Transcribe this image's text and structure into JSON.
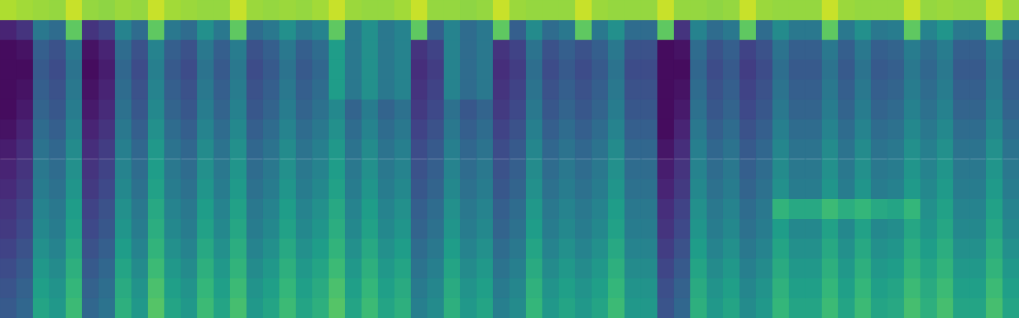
{
  "chart_data": {
    "type": "heatmap",
    "color": "viridis",
    "color_range": [
      0,
      100
    ],
    "ylim": [
      0,
      16
    ],
    "tick_labels": false,
    "cells": [
      [
        88,
        86,
        85,
        84,
        92,
        84,
        83,
        85,
        84,
        92,
        86,
        85,
        84,
        84,
        92,
        85,
        84,
        85,
        84,
        86,
        92,
        85,
        84,
        84,
        86,
        92,
        84,
        84,
        83,
        84,
        92,
        85,
        84,
        84,
        84,
        92,
        85,
        84,
        84,
        84,
        92,
        84,
        84,
        83,
        84,
        92,
        85,
        84,
        84,
        84,
        92,
        85,
        84,
        84,
        84,
        92,
        84,
        85,
        84,
        84,
        92,
        85
      ],
      [
        10,
        15,
        40,
        35,
        75,
        15,
        20,
        45,
        35,
        75,
        40,
        35,
        50,
        40,
        75,
        35,
        40,
        50,
        40,
        45,
        75,
        40,
        50,
        40,
        45,
        75,
        30,
        45,
        35,
        40,
        75,
        30,
        48,
        35,
        40,
        75,
        40,
        50,
        35,
        35,
        75,
        15,
        45,
        35,
        40,
        75,
        35,
        48,
        40,
        40,
        75,
        40,
        50,
        40,
        42,
        75,
        45,
        52,
        40,
        40,
        75,
        40
      ],
      [
        3,
        5,
        30,
        25,
        40,
        5,
        10,
        35,
        25,
        45,
        30,
        25,
        40,
        30,
        42,
        25,
        30,
        40,
        30,
        35,
        55,
        40,
        50,
        40,
        45,
        15,
        20,
        45,
        35,
        40,
        15,
        20,
        38,
        25,
        30,
        25,
        30,
        40,
        25,
        25,
        3,
        5,
        35,
        25,
        30,
        20,
        25,
        38,
        30,
        30,
        40,
        30,
        40,
        30,
        32,
        42,
        35,
        42,
        30,
        30,
        42,
        30
      ],
      [
        3,
        3,
        28,
        23,
        38,
        3,
        8,
        33,
        23,
        43,
        28,
        23,
        38,
        28,
        40,
        23,
        28,
        38,
        28,
        33,
        55,
        40,
        50,
        40,
        45,
        13,
        18,
        45,
        35,
        40,
        13,
        18,
        36,
        23,
        28,
        23,
        28,
        38,
        23,
        23,
        3,
        3,
        33,
        23,
        28,
        18,
        23,
        36,
        28,
        28,
        38,
        28,
        38,
        28,
        30,
        40,
        33,
        40,
        28,
        28,
        40,
        28
      ],
      [
        3,
        5,
        30,
        25,
        40,
        5,
        10,
        35,
        25,
        45,
        30,
        25,
        40,
        30,
        42,
        25,
        30,
        40,
        30,
        35,
        55,
        40,
        50,
        40,
        45,
        15,
        20,
        45,
        35,
        40,
        15,
        20,
        38,
        25,
        30,
        25,
        30,
        40,
        25,
        25,
        3,
        5,
        35,
        25,
        30,
        20,
        25,
        38,
        30,
        30,
        40,
        30,
        40,
        30,
        32,
        42,
        35,
        42,
        30,
        30,
        42,
        30
      ],
      [
        3,
        7,
        32,
        27,
        42,
        7,
        12,
        37,
        27,
        47,
        32,
        27,
        42,
        32,
        44,
        27,
        32,
        42,
        32,
        37,
        47,
        32,
        42,
        32,
        37,
        17,
        22,
        37,
        27,
        32,
        17,
        22,
        40,
        27,
        32,
        27,
        32,
        42,
        27,
        27,
        3,
        7,
        37,
        27,
        32,
        22,
        27,
        40,
        32,
        32,
        42,
        32,
        42,
        32,
        34,
        44,
        37,
        44,
        32,
        32,
        44,
        32
      ],
      [
        5,
        10,
        35,
        30,
        45,
        10,
        15,
        40,
        30,
        50,
        35,
        30,
        45,
        35,
        47,
        30,
        35,
        45,
        35,
        40,
        50,
        35,
        45,
        35,
        40,
        20,
        25,
        40,
        30,
        35,
        20,
        25,
        43,
        30,
        35,
        30,
        35,
        45,
        30,
        30,
        3,
        10,
        40,
        30,
        35,
        25,
        30,
        43,
        35,
        35,
        45,
        35,
        45,
        35,
        37,
        47,
        40,
        47,
        35,
        35,
        47,
        35
      ],
      [
        8,
        13,
        38,
        33,
        48,
        13,
        18,
        43,
        33,
        53,
        38,
        33,
        48,
        38,
        50,
        33,
        38,
        48,
        38,
        43,
        53,
        38,
        48,
        38,
        43,
        23,
        28,
        43,
        33,
        38,
        23,
        28,
        46,
        33,
        38,
        33,
        38,
        48,
        33,
        33,
        6,
        13,
        43,
        33,
        38,
        28,
        33,
        46,
        38,
        38,
        48,
        38,
        48,
        38,
        40,
        50,
        43,
        50,
        38,
        38,
        50,
        38
      ],
      [
        10,
        15,
        40,
        35,
        50,
        15,
        20,
        45,
        35,
        55,
        40,
        35,
        50,
        40,
        52,
        35,
        40,
        50,
        40,
        45,
        55,
        40,
        50,
        40,
        45,
        25,
        30,
        45,
        35,
        40,
        25,
        30,
        48,
        35,
        40,
        35,
        40,
        50,
        35,
        35,
        8,
        15,
        45,
        35,
        40,
        30,
        35,
        48,
        40,
        40,
        50,
        40,
        50,
        40,
        42,
        52,
        45,
        52,
        40,
        40,
        52,
        40
      ],
      [
        12,
        17,
        42,
        37,
        52,
        17,
        22,
        47,
        37,
        57,
        42,
        37,
        52,
        42,
        54,
        37,
        42,
        52,
        42,
        47,
        57,
        42,
        52,
        42,
        47,
        27,
        32,
        47,
        37,
        42,
        27,
        32,
        50,
        37,
        42,
        37,
        42,
        52,
        37,
        37,
        10,
        17,
        47,
        37,
        42,
        32,
        37,
        50,
        42,
        42,
        52,
        42,
        52,
        42,
        44,
        54,
        47,
        54,
        42,
        42,
        54,
        42
      ],
      [
        15,
        20,
        45,
        40,
        55,
        20,
        25,
        50,
        40,
        60,
        45,
        40,
        55,
        45,
        57,
        40,
        45,
        55,
        45,
        50,
        60,
        45,
        55,
        45,
        50,
        30,
        35,
        50,
        40,
        45,
        30,
        35,
        53,
        40,
        45,
        40,
        45,
        55,
        40,
        40,
        13,
        20,
        50,
        40,
        45,
        35,
        40,
        65,
        60,
        60,
        68,
        62,
        66,
        60,
        58,
        66,
        50,
        57,
        45,
        45,
        57,
        45
      ],
      [
        17,
        22,
        47,
        42,
        57,
        22,
        27,
        52,
        42,
        62,
        47,
        42,
        57,
        47,
        59,
        42,
        47,
        57,
        47,
        52,
        62,
        47,
        57,
        47,
        52,
        32,
        37,
        52,
        42,
        47,
        32,
        37,
        55,
        42,
        47,
        42,
        47,
        57,
        42,
        42,
        15,
        22,
        52,
        42,
        47,
        37,
        42,
        55,
        47,
        47,
        57,
        47,
        57,
        47,
        49,
        59,
        52,
        59,
        47,
        47,
        59,
        47
      ],
      [
        20,
        25,
        50,
        45,
        60,
        25,
        30,
        55,
        45,
        65,
        50,
        45,
        60,
        50,
        62,
        45,
        50,
        60,
        50,
        55,
        65,
        50,
        60,
        50,
        55,
        35,
        40,
        55,
        45,
        50,
        35,
        40,
        58,
        45,
        50,
        45,
        50,
        60,
        45,
        45,
        18,
        25,
        55,
        45,
        50,
        40,
        45,
        58,
        50,
        50,
        60,
        50,
        60,
        50,
        52,
        62,
        55,
        62,
        50,
        50,
        62,
        50
      ],
      [
        23,
        28,
        53,
        48,
        63,
        28,
        33,
        58,
        48,
        68,
        53,
        48,
        63,
        53,
        65,
        48,
        53,
        63,
        53,
        58,
        68,
        53,
        63,
        53,
        58,
        38,
        43,
        58,
        48,
        53,
        38,
        43,
        61,
        48,
        53,
        48,
        53,
        63,
        48,
        48,
        21,
        28,
        58,
        48,
        53,
        43,
        48,
        61,
        53,
        53,
        63,
        53,
        63,
        53,
        55,
        65,
        58,
        65,
        53,
        53,
        65,
        53
      ],
      [
        26,
        31,
        56,
        51,
        66,
        31,
        36,
        61,
        51,
        71,
        56,
        51,
        66,
        56,
        68,
        51,
        56,
        66,
        56,
        61,
        71,
        56,
        66,
        56,
        61,
        41,
        46,
        61,
        51,
        56,
        41,
        46,
        64,
        51,
        56,
        51,
        56,
        66,
        51,
        51,
        24,
        31,
        61,
        51,
        56,
        46,
        51,
        64,
        56,
        56,
        66,
        56,
        66,
        56,
        58,
        68,
        61,
        68,
        56,
        56,
        68,
        56
      ],
      [
        28,
        33,
        58,
        53,
        68,
        33,
        38,
        63,
        53,
        73,
        58,
        53,
        68,
        58,
        70,
        53,
        58,
        68,
        58,
        63,
        73,
        58,
        68,
        58,
        63,
        43,
        48,
        63,
        53,
        58,
        43,
        48,
        66,
        53,
        58,
        53,
        58,
        68,
        53,
        53,
        26,
        33,
        63,
        53,
        58,
        48,
        53,
        66,
        58,
        58,
        68,
        58,
        68,
        58,
        60,
        70,
        63,
        70,
        58,
        58,
        70,
        58
      ]
    ]
  }
}
